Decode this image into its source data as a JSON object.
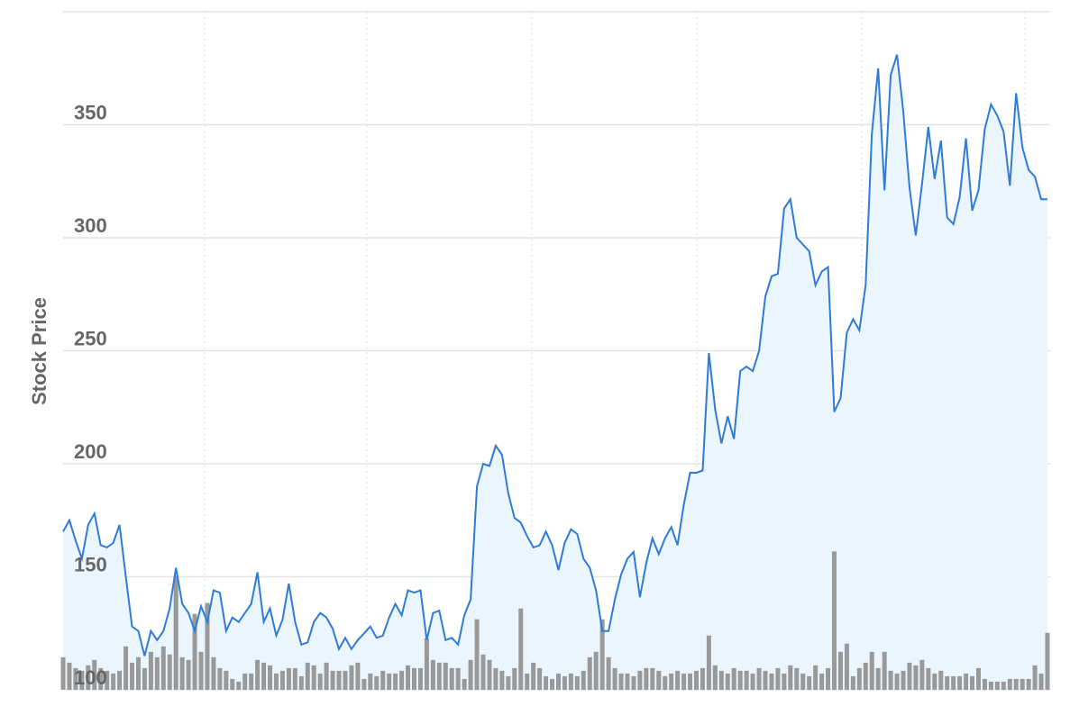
{
  "chart_data": {
    "type": "line",
    "y_label": "Stock Price",
    "ylim": [
      100,
      400
    ],
    "yticks": [
      100,
      150,
      200,
      250,
      300,
      350
    ],
    "grid": true,
    "y2lim": [
      0,
      250
    ],
    "series": [
      {
        "type": "area",
        "color": "#2f7bd6",
        "fill": "#eaf5fd",
        "values": [
          170,
          175,
          166,
          158,
          173,
          178,
          164,
          163,
          165,
          173,
          150,
          128,
          126,
          115,
          126,
          122,
          126,
          136,
          154,
          138,
          134,
          126,
          137,
          130,
          144,
          143,
          126,
          132,
          130,
          134,
          138,
          152,
          130,
          136,
          124,
          131,
          147,
          130,
          120,
          121,
          130,
          134,
          132,
          127,
          118,
          123,
          118,
          122,
          125,
          128,
          123,
          124,
          132,
          138,
          133,
          144,
          143,
          144,
          122,
          134,
          135,
          122,
          123,
          120,
          133,
          140,
          190,
          200,
          199,
          208,
          204,
          187,
          176,
          174,
          168,
          163,
          164,
          170,
          164,
          153,
          165,
          171,
          169,
          158,
          154,
          144,
          126,
          126,
          140,
          151,
          158,
          161,
          141,
          156,
          167,
          160,
          167,
          172,
          164,
          182,
          196,
          196,
          197,
          249,
          224,
          209,
          221,
          211,
          241,
          243,
          241,
          250,
          274,
          283,
          284,
          313,
          317,
          300,
          297,
          294,
          279,
          285,
          287,
          223,
          229,
          258,
          264,
          259,
          279,
          346,
          375,
          321,
          372,
          381,
          356,
          322,
          301,
          324,
          349,
          326,
          343,
          309,
          306,
          318,
          344,
          312,
          321,
          348,
          359,
          354,
          347,
          323,
          364,
          340,
          330,
          327,
          317,
          317
        ]
      },
      {
        "type": "bar",
        "axis": "y2",
        "color": "#999999",
        "values": [
          12,
          10,
          8,
          7,
          9,
          11,
          8,
          7,
          6,
          7,
          16,
          10,
          12,
          8,
          14,
          12,
          16,
          13,
          42,
          12,
          11,
          28,
          14,
          32,
          12,
          8,
          7,
          4,
          3,
          6,
          6,
          11,
          10,
          9,
          6,
          7,
          8,
          8,
          5,
          10,
          9,
          6,
          10,
          7,
          7,
          7,
          9,
          10,
          4,
          6,
          5,
          7,
          6,
          6,
          7,
          9,
          8,
          8,
          19,
          11,
          10,
          10,
          8,
          8,
          4,
          11,
          26,
          13,
          11,
          8,
          7,
          5,
          8,
          30,
          6,
          10,
          8,
          5,
          4,
          6,
          5,
          6,
          5,
          7,
          12,
          14,
          26,
          12,
          8,
          6,
          6,
          5,
          7,
          8,
          8,
          7,
          5,
          6,
          7,
          6,
          6,
          7,
          8,
          20,
          9,
          7,
          6,
          8,
          7,
          7,
          6,
          8,
          7,
          6,
          8,
          6,
          9,
          8,
          6,
          5,
          9,
          6,
          8,
          51,
          14,
          17,
          5,
          8,
          10,
          14,
          8,
          14,
          7,
          6,
          7,
          10,
          9,
          11,
          8,
          6,
          7,
          5,
          5,
          5,
          6,
          5,
          8,
          4,
          3,
          3,
          3,
          4,
          4,
          4,
          4,
          9,
          6,
          21
        ]
      }
    ]
  }
}
